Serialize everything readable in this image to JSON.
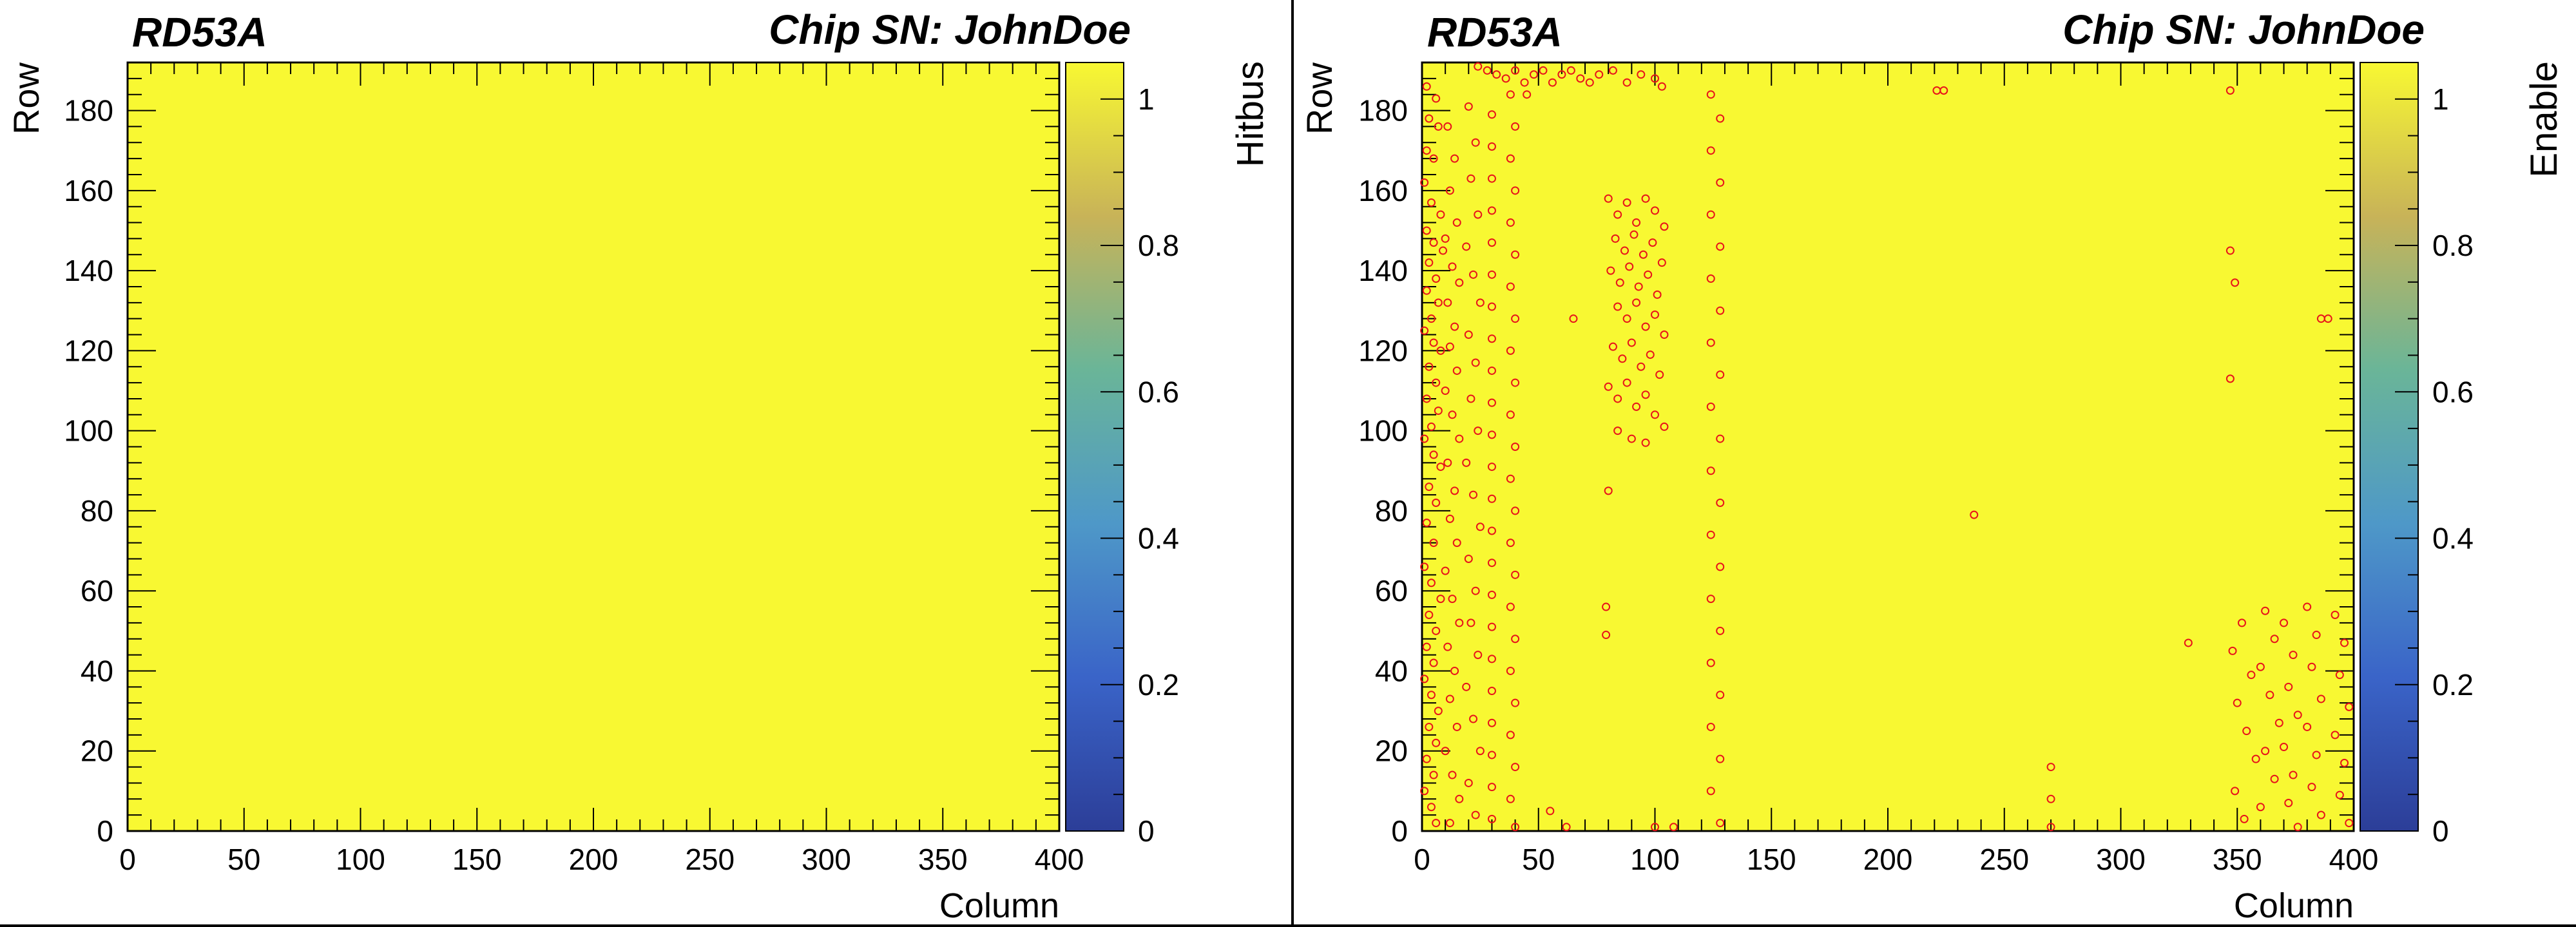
{
  "chart_data": [
    {
      "type": "heatmap",
      "title_left": "RD53A",
      "title_right": "Chip SN: JohnDoe",
      "xlabel": "Column",
      "ylabel": "Row",
      "zlabel": "Hitbus",
      "xlim": [
        0,
        400
      ],
      "ylim": [
        0,
        192
      ],
      "zlim": [
        0,
        1.05
      ],
      "x_ticks": [
        0,
        50,
        100,
        150,
        200,
        250,
        300,
        350,
        400
      ],
      "y_ticks": [
        0,
        20,
        40,
        60,
        80,
        100,
        120,
        140,
        160,
        180
      ],
      "z_ticks": [
        0,
        0.2,
        0.4,
        0.6,
        0.8,
        1
      ],
      "fill_value": 1,
      "markers": []
    },
    {
      "type": "heatmap",
      "title_left": "RD53A",
      "title_right": "Chip SN: JohnDoe",
      "xlabel": "Column",
      "ylabel": "Row",
      "zlabel": "Enable",
      "xlim": [
        0,
        400
      ],
      "ylim": [
        0,
        192
      ],
      "zlim": [
        0,
        1.05
      ],
      "x_ticks": [
        0,
        50,
        100,
        150,
        200,
        250,
        300,
        350,
        400
      ],
      "y_ticks": [
        0,
        20,
        40,
        60,
        80,
        100,
        120,
        140,
        160,
        180
      ],
      "z_ticks": [
        0,
        0.2,
        0.4,
        0.6,
        0.8,
        1
      ],
      "fill_value": 1,
      "marker_value": 0,
      "markers": [
        [
          2,
          186
        ],
        [
          6,
          183
        ],
        [
          3,
          178
        ],
        [
          7,
          176
        ],
        [
          2,
          170
        ],
        [
          5,
          168
        ],
        [
          1,
          162
        ],
        [
          4,
          157
        ],
        [
          8,
          154
        ],
        [
          2,
          150
        ],
        [
          5,
          147
        ],
        [
          9,
          145
        ],
        [
          3,
          142
        ],
        [
          6,
          138
        ],
        [
          2,
          135
        ],
        [
          7,
          132
        ],
        [
          4,
          128
        ],
        [
          1,
          125
        ],
        [
          5,
          122
        ],
        [
          8,
          120
        ],
        [
          3,
          116
        ],
        [
          6,
          112
        ],
        [
          2,
          108
        ],
        [
          7,
          105
        ],
        [
          4,
          101
        ],
        [
          1,
          98
        ],
        [
          5,
          94
        ],
        [
          8,
          91
        ],
        [
          3,
          86
        ],
        [
          6,
          82
        ],
        [
          2,
          77
        ],
        [
          5,
          72
        ],
        [
          1,
          66
        ],
        [
          4,
          62
        ],
        [
          8,
          58
        ],
        [
          3,
          54
        ],
        [
          6,
          50
        ],
        [
          2,
          46
        ],
        [
          5,
          42
        ],
        [
          1,
          38
        ],
        [
          4,
          34
        ],
        [
          7,
          30
        ],
        [
          3,
          26
        ],
        [
          6,
          22
        ],
        [
          2,
          18
        ],
        [
          5,
          14
        ],
        [
          1,
          10
        ],
        [
          4,
          6
        ],
        [
          6,
          2
        ],
        [
          11,
          176
        ],
        [
          14,
          168
        ],
        [
          12,
          160
        ],
        [
          15,
          152
        ],
        [
          10,
          148
        ],
        [
          13,
          141
        ],
        [
          16,
          137
        ],
        [
          11,
          132
        ],
        [
          14,
          126
        ],
        [
          12,
          121
        ],
        [
          15,
          115
        ],
        [
          10,
          110
        ],
        [
          13,
          104
        ],
        [
          16,
          98
        ],
        [
          11,
          92
        ],
        [
          14,
          85
        ],
        [
          12,
          78
        ],
        [
          15,
          72
        ],
        [
          10,
          65
        ],
        [
          13,
          58
        ],
        [
          16,
          52
        ],
        [
          11,
          46
        ],
        [
          14,
          40
        ],
        [
          12,
          33
        ],
        [
          15,
          26
        ],
        [
          10,
          20
        ],
        [
          13,
          14
        ],
        [
          16,
          8
        ],
        [
          12,
          2
        ],
        [
          20,
          181
        ],
        [
          23,
          172
        ],
        [
          21,
          163
        ],
        [
          24,
          154
        ],
        [
          19,
          146
        ],
        [
          22,
          139
        ],
        [
          25,
          132
        ],
        [
          20,
          124
        ],
        [
          23,
          117
        ],
        [
          21,
          108
        ],
        [
          24,
          100
        ],
        [
          19,
          92
        ],
        [
          22,
          84
        ],
        [
          25,
          76
        ],
        [
          20,
          68
        ],
        [
          23,
          60
        ],
        [
          21,
          52
        ],
        [
          24,
          44
        ],
        [
          19,
          36
        ],
        [
          22,
          28
        ],
        [
          25,
          20
        ],
        [
          20,
          12
        ],
        [
          23,
          4
        ],
        [
          30,
          179
        ],
        [
          30,
          171
        ],
        [
          30,
          163
        ],
        [
          30,
          155
        ],
        [
          30,
          147
        ],
        [
          30,
          139
        ],
        [
          30,
          131
        ],
        [
          30,
          123
        ],
        [
          30,
          115
        ],
        [
          30,
          107
        ],
        [
          30,
          99
        ],
        [
          30,
          91
        ],
        [
          30,
          83
        ],
        [
          30,
          75
        ],
        [
          30,
          67
        ],
        [
          30,
          59
        ],
        [
          30,
          51
        ],
        [
          30,
          43
        ],
        [
          30,
          35
        ],
        [
          30,
          27
        ],
        [
          30,
          19
        ],
        [
          30,
          11
        ],
        [
          30,
          3
        ],
        [
          38,
          184
        ],
        [
          40,
          176
        ],
        [
          38,
          168
        ],
        [
          40,
          160
        ],
        [
          38,
          152
        ],
        [
          40,
          144
        ],
        [
          38,
          136
        ],
        [
          40,
          128
        ],
        [
          38,
          120
        ],
        [
          40,
          112
        ],
        [
          38,
          104
        ],
        [
          40,
          96
        ],
        [
          38,
          88
        ],
        [
          40,
          80
        ],
        [
          38,
          72
        ],
        [
          40,
          64
        ],
        [
          38,
          56
        ],
        [
          40,
          48
        ],
        [
          38,
          40
        ],
        [
          40,
          32
        ],
        [
          38,
          24
        ],
        [
          40,
          16
        ],
        [
          38,
          8
        ],
        [
          40,
          1
        ],
        [
          24,
          191
        ],
        [
          28,
          190
        ],
        [
          32,
          189
        ],
        [
          36,
          188
        ],
        [
          40,
          190
        ],
        [
          44,
          187
        ],
        [
          48,
          189
        ],
        [
          52,
          190
        ],
        [
          56,
          187
        ],
        [
          60,
          189
        ],
        [
          64,
          190
        ],
        [
          68,
          188
        ],
        [
          72,
          187
        ],
        [
          76,
          189
        ],
        [
          82,
          190
        ],
        [
          88,
          187
        ],
        [
          94,
          189
        ],
        [
          100,
          188
        ],
        [
          103,
          186
        ],
        [
          45,
          184
        ],
        [
          55,
          5
        ],
        [
          62,
          1
        ],
        [
          100,
          1
        ],
        [
          108,
          1
        ],
        [
          80,
          158
        ],
        [
          84,
          154
        ],
        [
          88,
          157
        ],
        [
          92,
          152
        ],
        [
          96,
          158
        ],
        [
          100,
          155
        ],
        [
          104,
          151
        ],
        [
          83,
          148
        ],
        [
          87,
          145
        ],
        [
          91,
          149
        ],
        [
          95,
          144
        ],
        [
          99,
          147
        ],
        [
          103,
          142
        ],
        [
          81,
          140
        ],
        [
          85,
          137
        ],
        [
          89,
          141
        ],
        [
          93,
          136
        ],
        [
          97,
          139
        ],
        [
          101,
          134
        ],
        [
          84,
          131
        ],
        [
          88,
          128
        ],
        [
          92,
          132
        ],
        [
          96,
          126
        ],
        [
          100,
          129
        ],
        [
          104,
          124
        ],
        [
          82,
          121
        ],
        [
          86,
          118
        ],
        [
          90,
          122
        ],
        [
          94,
          116
        ],
        [
          98,
          119
        ],
        [
          102,
          114
        ],
        [
          80,
          111
        ],
        [
          84,
          108
        ],
        [
          88,
          112
        ],
        [
          92,
          106
        ],
        [
          96,
          109
        ],
        [
          100,
          104
        ],
        [
          104,
          101
        ],
        [
          84,
          100
        ],
        [
          90,
          98
        ],
        [
          96,
          97
        ],
        [
          65,
          128
        ],
        [
          80,
          85
        ],
        [
          79,
          56
        ],
        [
          79,
          49
        ],
        [
          124,
          184
        ],
        [
          128,
          178
        ],
        [
          124,
          170
        ],
        [
          128,
          162
        ],
        [
          124,
          154
        ],
        [
          128,
          146
        ],
        [
          124,
          138
        ],
        [
          128,
          130
        ],
        [
          124,
          122
        ],
        [
          128,
          114
        ],
        [
          124,
          106
        ],
        [
          128,
          98
        ],
        [
          124,
          90
        ],
        [
          128,
          82
        ],
        [
          124,
          74
        ],
        [
          128,
          66
        ],
        [
          124,
          58
        ],
        [
          128,
          50
        ],
        [
          124,
          42
        ],
        [
          128,
          34
        ],
        [
          124,
          26
        ],
        [
          128,
          18
        ],
        [
          124,
          10
        ],
        [
          128,
          2
        ],
        [
          221,
          185
        ],
        [
          224,
          185
        ],
        [
          237,
          79
        ],
        [
          270,
          16
        ],
        [
          270,
          8
        ],
        [
          270,
          1
        ],
        [
          329,
          47
        ],
        [
          347,
          185
        ],
        [
          347,
          145
        ],
        [
          349,
          137
        ],
        [
          347,
          113
        ],
        [
          386,
          128
        ],
        [
          389,
          128
        ],
        [
          348,
          45
        ],
        [
          352,
          52
        ],
        [
          356,
          39
        ],
        [
          350,
          32
        ],
        [
          354,
          25
        ],
        [
          358,
          18
        ],
        [
          349,
          10
        ],
        [
          353,
          3
        ],
        [
          362,
          55
        ],
        [
          366,
          48
        ],
        [
          360,
          41
        ],
        [
          364,
          34
        ],
        [
          368,
          27
        ],
        [
          362,
          20
        ],
        [
          366,
          13
        ],
        [
          360,
          6
        ],
        [
          370,
          52
        ],
        [
          374,
          44
        ],
        [
          372,
          36
        ],
        [
          376,
          29
        ],
        [
          370,
          21
        ],
        [
          374,
          14
        ],
        [
          372,
          7
        ],
        [
          376,
          1
        ],
        [
          380,
          56
        ],
        [
          384,
          49
        ],
        [
          382,
          41
        ],
        [
          386,
          33
        ],
        [
          380,
          26
        ],
        [
          384,
          19
        ],
        [
          382,
          11
        ],
        [
          386,
          4
        ],
        [
          392,
          54
        ],
        [
          396,
          47
        ],
        [
          394,
          39
        ],
        [
          398,
          31
        ],
        [
          392,
          24
        ],
        [
          396,
          17
        ],
        [
          394,
          9
        ],
        [
          398,
          2
        ]
      ]
    }
  ]
}
